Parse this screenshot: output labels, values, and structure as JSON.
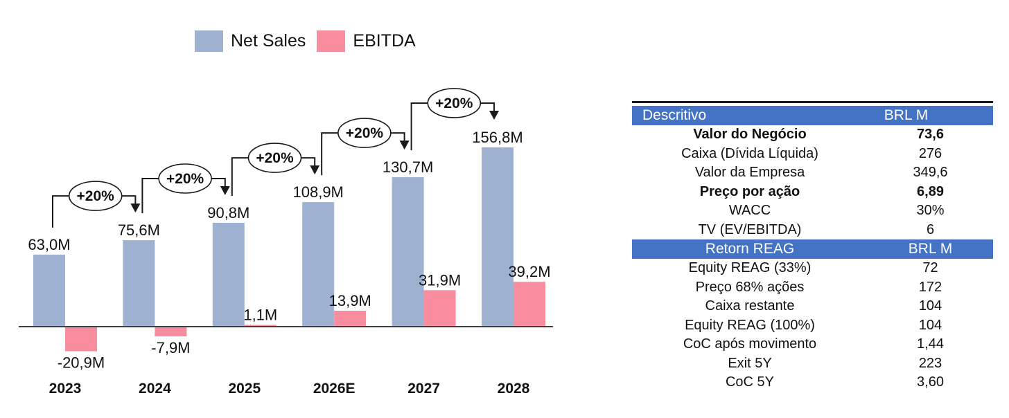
{
  "chart_data": {
    "type": "bar",
    "title": "",
    "categories": [
      "2023",
      "2024",
      "2025",
      "2026E",
      "2027",
      "2028"
    ],
    "series": [
      {
        "name": "Net Sales",
        "color": "#9FB1D1",
        "values": [
          63.0,
          75.6,
          90.8,
          108.9,
          130.7,
          156.8
        ],
        "labels": [
          "63,0M",
          "75,6M",
          "90,8M",
          "108,9M",
          "130,7M",
          "156,8M"
        ]
      },
      {
        "name": "EBITDA",
        "color": "#F98DA0",
        "values": [
          -20.9,
          -7.9,
          1.1,
          13.9,
          31.9,
          39.2
        ],
        "labels": [
          "-20,9M",
          "-7,9M",
          "1,1M",
          "13,9M",
          "31,9M",
          "39,2M"
        ]
      }
    ],
    "growth_annotations": [
      "+20%",
      "+20%",
      "+20%",
      "+20%",
      "+20%"
    ],
    "unit": "BRL M",
    "xlabel": "",
    "ylabel": "",
    "ylim": [
      -30,
      175
    ],
    "grid": false,
    "legend_position": "top",
    "axis_color": "#404040"
  },
  "table": {
    "header_bg": "#4472C4",
    "header_text_color": "#FFFFFF",
    "sections": [
      {
        "header": {
          "col1": "Descritivo",
          "col2": "BRL M"
        },
        "rows": [
          {
            "label": "Valor do Negócio",
            "value": "73,6",
            "bold": true
          },
          {
            "label": "Caixa (Dívida Líquida)",
            "value": "276",
            "bold": false
          },
          {
            "label": "Valor da Empresa",
            "value": "349,6",
            "bold": false
          },
          {
            "label": "Preço por ação",
            "value": "6,89",
            "bold": true
          },
          {
            "label": "WACC",
            "value": "30%",
            "bold": false
          },
          {
            "label": "TV (EV/EBITDA)",
            "value": "6",
            "bold": false
          }
        ]
      },
      {
        "header": {
          "col1": "Retorn REAG",
          "col2": "BRL M"
        },
        "rows": [
          {
            "label": "Equity REAG (33%)",
            "value": "72",
            "bold": false
          },
          {
            "label": "Preço 68% ações",
            "value": "172",
            "bold": false
          },
          {
            "label": "Caixa restante",
            "value": "104",
            "bold": false
          },
          {
            "label": "Equity REAG (100%)",
            "value": "104",
            "bold": false
          },
          {
            "label": "CoC após movimento",
            "value": "1,44",
            "bold": false
          },
          {
            "label": "Exit 5Y",
            "value": "223",
            "bold": false
          },
          {
            "label": "CoC 5Y",
            "value": "3,60",
            "bold": false
          }
        ]
      }
    ]
  }
}
